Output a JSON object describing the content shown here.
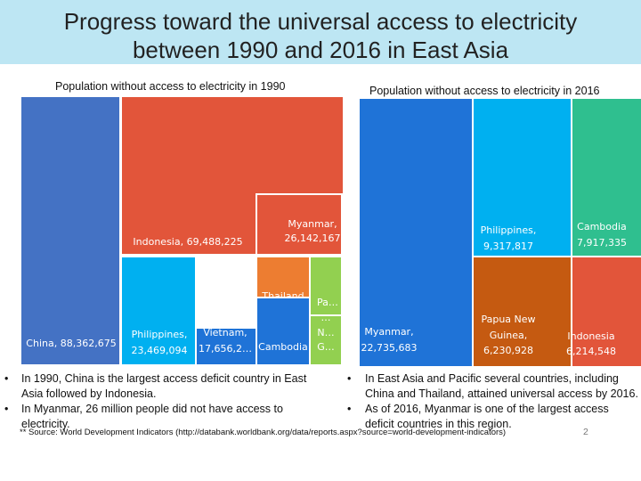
{
  "slide": {
    "title_line1": "Progress toward the universal access to electricity",
    "title_line2": "between 1990 and 2016 in East Asia",
    "source": "** Source: World Development Indicators (http://databank.worldbank.org/data/reports.aspx?source=world-development-indicators)",
    "page_number": "2",
    "bullets_left": [
      "In 1990, China is the largest access deficit country in East Asia followed by Indonesia.",
      "In Myanmar, 26 million people did not have access to electricity."
    ],
    "bullets_right": [
      "In East Asia and Pacific several countries, including China and Thailand, attained universal access by 2016.",
      "As of 2016, Myanmar is one of the largest access deficit countries in this region."
    ]
  },
  "chart_data": [
    {
      "type": "treemap",
      "title": "Population without access to electricity in 1990",
      "items": [
        {
          "label": "China, 88,362,675",
          "name": "China",
          "value": 88362675,
          "color": "#4472c4"
        },
        {
          "label": "Indonesia, 69,488,225",
          "name": "Indonesia",
          "value": 69488225,
          "color": "#e2553a"
        },
        {
          "label": "Myanmar, 26,142,167",
          "name": "Myanmar",
          "value": 26142167,
          "color": "#e2553a"
        },
        {
          "label": "Philippines, 23,469,094",
          "name": "Philippines",
          "value": 23469094,
          "color": "#00b0f0"
        },
        {
          "label": "Vietnam, 17,656,2…",
          "name": "Vietnam",
          "value": null,
          "color": "#1f73d7"
        },
        {
          "label": "Thailand",
          "name": "Thailand",
          "value": null,
          "color": "#ed7d31"
        },
        {
          "label": "Cambodia",
          "name": "Cambodia",
          "value": null,
          "color": "#1f73d7"
        },
        {
          "label": "Pa…",
          "name": "Pa…",
          "value": null,
          "color": "#92d050"
        },
        {
          "label": "…",
          "name": "…",
          "value": null,
          "color": "#92d050"
        },
        {
          "label": "N…",
          "name": "N…",
          "value": null,
          "color": "#92d050"
        },
        {
          "label": "G…",
          "name": "G…",
          "value": null,
          "color": "#92d050"
        }
      ]
    },
    {
      "type": "treemap",
      "title": "Population without access to electricity in 2016",
      "items": [
        {
          "label": "Myanmar, 22,735,683",
          "name": "Myanmar",
          "value": 22735683,
          "color": "#1f73d7"
        },
        {
          "label": "Philippines, 9,317,817",
          "name": "Philippines",
          "value": 9317817,
          "color": "#00b0f0"
        },
        {
          "label": "Cambodia 7,917,335",
          "name": "Cambodia",
          "value": 7917335,
          "color": "#2fbf8f"
        },
        {
          "label": "Papua New Guinea, 6,230,928",
          "name": "Papua New Guinea",
          "value": 6230928,
          "color": "#c55a11"
        },
        {
          "label": "Indonesia 6,214,548",
          "name": "Indonesia",
          "value": 6214548,
          "color": "#e2553a"
        }
      ]
    }
  ]
}
